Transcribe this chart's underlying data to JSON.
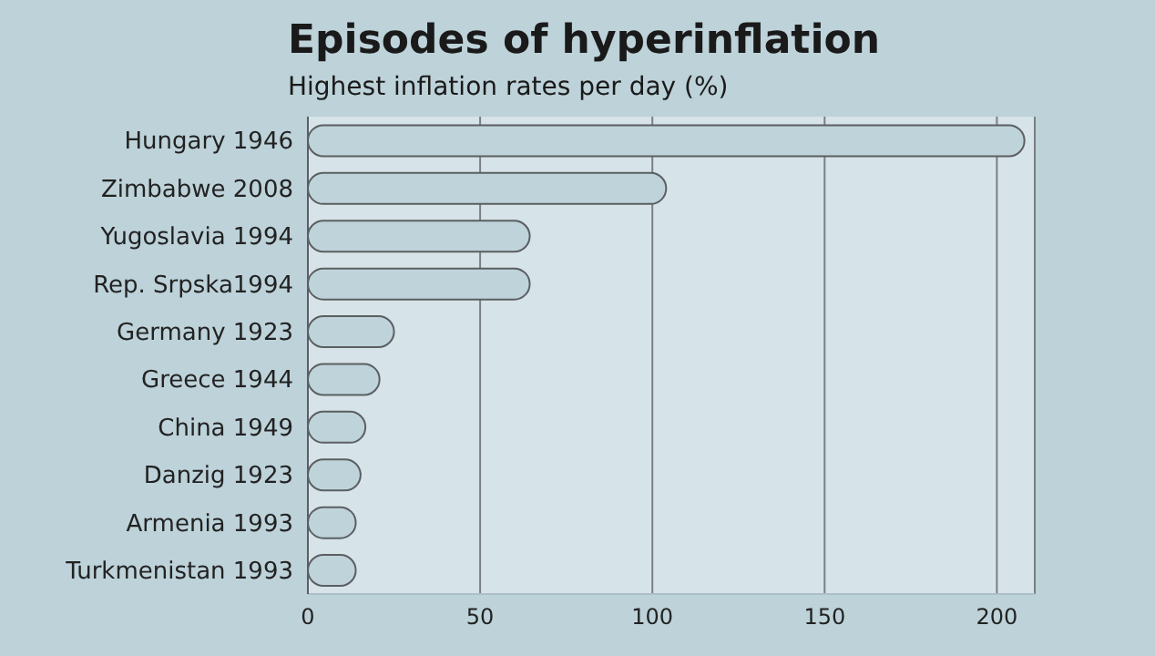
{
  "chart_data": {
    "type": "bar",
    "orientation": "horizontal",
    "title": "Episodes of hyperinflation",
    "subtitle": "Highest inflation rates per day (%)",
    "categories": [
      "Hungary 1946",
      "Zimbabwe 2008",
      "Yugoslavia 1994",
      "Rep. Srpska1994",
      "Germany 1923",
      "Greece 1944",
      "China 1949",
      "Danzig 1923",
      "Armenia 1993",
      "Turkmenistan 1993"
    ],
    "values": [
      208,
      104,
      64.4,
      64.4,
      25,
      20.8,
      16.7,
      15.3,
      13.9,
      13.9
    ],
    "color": "#bfd3da",
    "xlim": [
      0,
      211
    ],
    "xticks": [
      0,
      50,
      100,
      150,
      200
    ],
    "grid": "x"
  }
}
